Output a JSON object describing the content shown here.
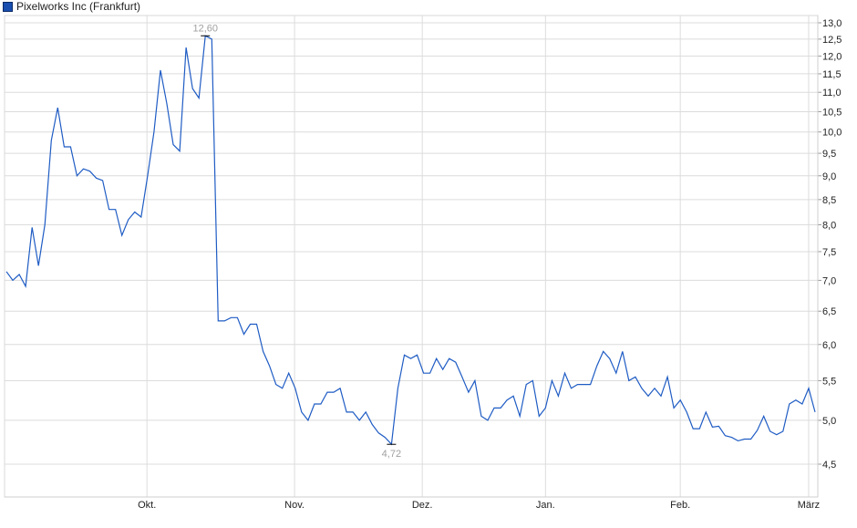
{
  "chart_data": {
    "type": "line",
    "title": "",
    "legend": {
      "label": "Pixelworks Inc (Frankfurt)",
      "placement": "top-left"
    },
    "xlabel": "",
    "ylabel": "",
    "y_scale": "log",
    "ylim": [
      4.2,
      13.2
    ],
    "y_ticks": [
      "4,5",
      "5,0",
      "5,5",
      "6,0",
      "6,5",
      "7,0",
      "7,5",
      "8,0",
      "8,5",
      "9,0",
      "9,5",
      "10,0",
      "10,5",
      "11,0",
      "11,5",
      "12,0",
      "12,5",
      "13,0"
    ],
    "y_tick_values": [
      4.5,
      5.0,
      5.5,
      6.0,
      6.5,
      7.0,
      7.5,
      8.0,
      8.5,
      9.0,
      9.5,
      10.0,
      10.5,
      11.0,
      11.5,
      12.0,
      12.5,
      13.0
    ],
    "x_ticks": [
      {
        "label": "Okt.",
        "index": 21.9
      },
      {
        "label": "Nov.",
        "index": 44.9
      },
      {
        "label": "Dez.",
        "index": 64.8
      },
      {
        "label": "Jan.",
        "index": 84.0
      },
      {
        "label": "Feb.",
        "index": 105.0
      },
      {
        "label": "März",
        "index": 125.0
      }
    ],
    "grid": true,
    "series": [
      {
        "color": "#1f5cc4",
        "values": [
          7.15,
          7.0,
          7.1,
          6.9,
          7.95,
          7.25,
          8.0,
          9.8,
          10.6,
          9.65,
          9.65,
          9.0,
          9.15,
          9.1,
          8.95,
          8.9,
          8.3,
          8.3,
          7.8,
          8.1,
          8.25,
          8.15,
          9.0,
          10.0,
          11.6,
          10.7,
          9.7,
          9.55,
          12.25,
          11.1,
          10.85,
          12.6,
          12.5,
          6.35,
          6.35,
          6.4,
          6.4,
          6.15,
          6.3,
          6.3,
          5.9,
          5.7,
          5.45,
          5.4,
          5.6,
          5.4,
          5.1,
          5.0,
          5.2,
          5.2,
          5.35,
          5.35,
          5.4,
          5.1,
          5.1,
          5.0,
          5.1,
          4.95,
          4.85,
          4.8,
          4.72,
          5.4,
          5.85,
          5.8,
          5.85,
          5.6,
          5.6,
          5.8,
          5.65,
          5.8,
          5.75,
          5.55,
          5.35,
          5.5,
          5.05,
          5.0,
          5.15,
          5.15,
          5.25,
          5.3,
          5.05,
          5.45,
          5.5,
          5.05,
          5.15,
          5.5,
          5.3,
          5.6,
          5.4,
          5.45,
          5.45,
          5.45,
          5.7,
          5.9,
          5.8,
          5.6,
          5.9,
          5.5,
          5.55,
          5.4,
          5.3,
          5.4,
          5.3,
          5.55,
          5.15,
          5.25,
          5.1,
          4.9,
          4.9,
          5.1,
          4.92,
          4.93,
          4.82,
          4.8,
          4.76,
          4.78,
          4.78,
          4.88,
          5.05,
          4.87,
          4.83,
          4.87,
          5.2,
          5.25,
          5.2,
          5.4,
          5.1
        ]
      }
    ],
    "annotations": [
      {
        "label": "12,60",
        "index": 31,
        "value": 12.6,
        "position": "above"
      },
      {
        "label": "4,72",
        "index": 60,
        "value": 4.72,
        "position": "below"
      }
    ],
    "annotation_color": "#a0a0a0"
  }
}
